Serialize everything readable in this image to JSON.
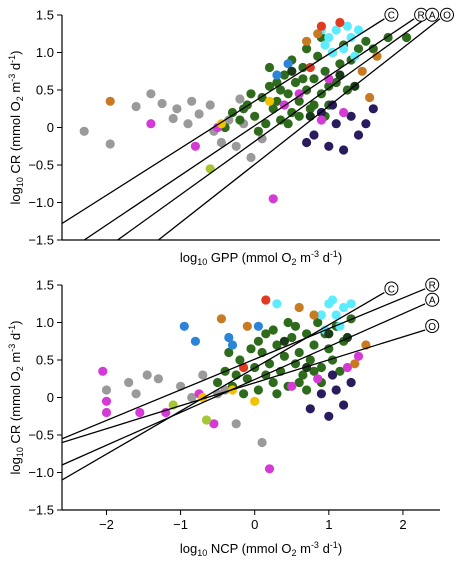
{
  "chart_data": [
    {
      "type": "scatter",
      "ylabel": "log10 CR (mmol O2 m-3 d-1)",
      "xlabel": "log10 GPP (mmol O2 m-3 d-1)",
      "xlim": [
        -2.6,
        2.5
      ],
      "ylim": [
        -1.5,
        1.5
      ],
      "y_ticks": [
        -1.5,
        -1.0,
        -0.5,
        0,
        0.5,
        1.0,
        1.5
      ],
      "y_tick_labels": [
        "−1.5",
        "−1.0",
        "−0.5",
        "0",
        "0.5",
        "1.0",
        "1.5"
      ],
      "x_tick_labels_shown": false,
      "regression_lines": [
        {
          "label": "C",
          "x": [
            -2.6,
            1.75
          ],
          "y": [
            -1.28,
            1.45
          ]
        },
        {
          "label": "R",
          "x": [
            -2.3,
            2.15
          ],
          "y": [
            -1.5,
            1.45
          ]
        },
        {
          "label": "A",
          "x": [
            -1.85,
            2.3
          ],
          "y": [
            -1.5,
            1.45
          ]
        },
        {
          "label": "O",
          "x": [
            -1.3,
            2.5
          ],
          "y": [
            -1.5,
            1.45
          ]
        }
      ],
      "point_groups": [
        {
          "color": "#9a9a9a",
          "points": [
            [
              -2.3,
              -0.05
            ],
            [
              -1.95,
              -0.22
            ],
            [
              -1.6,
              0.28
            ],
            [
              -1.4,
              0.45
            ],
            [
              -1.25,
              0.32
            ],
            [
              -1.1,
              0.12
            ],
            [
              -0.9,
              0.05
            ],
            [
              -0.75,
              0.18
            ],
            [
              -0.6,
              0.3
            ],
            [
              -0.45,
              -0.2
            ],
            [
              -0.35,
              0.1
            ],
            [
              -0.2,
              0.38
            ],
            [
              -0.05,
              -0.4
            ],
            [
              -0.55,
              -0.05
            ],
            [
              -0.15,
              0.05
            ],
            [
              0.1,
              -0.15
            ],
            [
              -0.85,
              0.35
            ],
            [
              -1.05,
              0.25
            ],
            [
              -0.25,
              -0.25
            ]
          ]
        },
        {
          "color": "#2f6b1c",
          "points": [
            [
              -0.4,
              0.0
            ],
            [
              -0.3,
              0.2
            ],
            [
              -0.2,
              0.1
            ],
            [
              -0.1,
              0.3
            ],
            [
              0.0,
              0.15
            ],
            [
              0.1,
              0.4
            ],
            [
              0.15,
              0.05
            ],
            [
              0.2,
              0.55
            ],
            [
              0.25,
              0.25
            ],
            [
              0.3,
              0.35
            ],
            [
              0.35,
              0.1
            ],
            [
              0.4,
              0.7
            ],
            [
              0.45,
              0.45
            ],
            [
              0.5,
              0.2
            ],
            [
              0.55,
              0.6
            ],
            [
              0.6,
              0.35
            ],
            [
              0.65,
              0.8
            ],
            [
              0.7,
              0.5
            ],
            [
              0.75,
              0.25
            ],
            [
              0.8,
              0.65
            ],
            [
              0.85,
              0.95
            ],
            [
              0.9,
              0.45
            ],
            [
              0.95,
              0.75
            ],
            [
              1.0,
              0.3
            ],
            [
              1.05,
              1.0
            ],
            [
              1.1,
              0.6
            ],
            [
              1.15,
              0.85
            ],
            [
              1.2,
              1.1
            ],
            [
              1.3,
              0.9
            ],
            [
              1.4,
              1.05
            ],
            [
              1.5,
              1.15
            ],
            [
              1.6,
              1.05
            ],
            [
              1.8,
              1.2
            ],
            [
              2.05,
              1.2
            ],
            [
              0.05,
              -0.05
            ],
            [
              -0.05,
              0.45
            ],
            [
              0.3,
              0.6
            ],
            [
              0.5,
              0.9
            ],
            [
              0.7,
              1.05
            ],
            [
              0.9,
              1.2
            ],
            [
              0.2,
              0.8
            ],
            [
              0.45,
              0.05
            ],
            [
              0.6,
              0.15
            ],
            [
              0.8,
              0.3
            ],
            [
              1.0,
              0.55
            ],
            [
              -0.15,
              0.25
            ],
            [
              0.35,
              0.5
            ],
            [
              0.65,
              0.65
            ],
            [
              0.95,
              0.15
            ],
            [
              1.25,
              0.5
            ]
          ]
        },
        {
          "color": "#5cecff",
          "points": [
            [
              0.9,
              1.3
            ],
            [
              1.0,
              1.2
            ],
            [
              1.1,
              1.3
            ],
            [
              1.2,
              1.05
            ],
            [
              1.3,
              1.2
            ],
            [
              1.4,
              1.3
            ],
            [
              1.05,
              1.0
            ],
            [
              0.95,
              1.1
            ],
            [
              1.25,
              1.35
            ],
            [
              1.35,
              0.95
            ]
          ]
        },
        {
          "color": "#2a1a5e",
          "points": [
            [
              0.8,
              -0.1
            ],
            [
              0.9,
              0.2
            ],
            [
              1.0,
              -0.25
            ],
            [
              1.1,
              0.05
            ],
            [
              1.2,
              -0.3
            ],
            [
              1.3,
              0.15
            ],
            [
              1.4,
              -0.1
            ],
            [
              1.5,
              0.05
            ],
            [
              1.6,
              0.25
            ],
            [
              1.05,
              0.3
            ],
            [
              0.7,
              -0.2
            ]
          ]
        },
        {
          "color": "#d63ad6",
          "points": [
            [
              -1.4,
              0.05
            ],
            [
              -0.8,
              -0.25
            ],
            [
              -0.5,
              0.0
            ],
            [
              0.25,
              -0.95
            ],
            [
              0.9,
              0.1
            ],
            [
              1.2,
              0.2
            ],
            [
              1.0,
              0.65
            ],
            [
              0.6,
              0.45
            ],
            [
              0.4,
              0.3
            ]
          ]
        },
        {
          "color": "#c87a22",
          "points": [
            [
              -1.95,
              0.35
            ],
            [
              0.7,
              1.15
            ],
            [
              0.85,
              1.25
            ],
            [
              1.45,
              0.75
            ],
            [
              1.55,
              0.4
            ],
            [
              1.65,
              0.95
            ]
          ]
        },
        {
          "color": "#e23a1f",
          "points": [
            [
              0.9,
              1.35
            ],
            [
              1.15,
              1.4
            ],
            [
              0.75,
              0.8
            ]
          ]
        },
        {
          "color": "#2c84d9",
          "points": [
            [
              0.45,
              0.85
            ],
            [
              0.3,
              0.7
            ]
          ]
        },
        {
          "color": "#f2c200",
          "points": [
            [
              -0.45,
              0.05
            ],
            [
              0.2,
              0.35
            ]
          ]
        },
        {
          "color": "#a6c636",
          "points": [
            [
              -0.6,
              -0.55
            ]
          ]
        },
        {
          "color": "#1a3a1a",
          "points": [
            [
              0.5,
              0.75
            ],
            [
              0.75,
              0.15
            ],
            [
              1.15,
              0.7
            ],
            [
              1.35,
              0.55
            ]
          ]
        }
      ],
      "line_color": "#000000"
    },
    {
      "type": "scatter",
      "ylabel": "log10 CR (mmol O2 m-3 d-1)",
      "xlabel": "log10 NCP (mmol O2 m-3 d-1)",
      "xlim": [
        -2.6,
        2.5
      ],
      "ylim": [
        -1.5,
        1.5
      ],
      "y_ticks": [
        -1.5,
        -1.0,
        -0.5,
        0,
        0.5,
        1.0,
        1.5
      ],
      "y_tick_labels": [
        "−1.5",
        "−1.0",
        "−0.5",
        "0",
        "0.5",
        "1.0",
        "1.5"
      ],
      "x_ticks": [
        -2,
        -1,
        0,
        1,
        2
      ],
      "x_tick_labels": [
        "−2",
        "−1",
        "0",
        "1",
        "2"
      ],
      "regression_lines": [
        {
          "label": "C",
          "x": [
            -2.6,
            1.75
          ],
          "y": [
            -1.1,
            1.4
          ]
        },
        {
          "label": "R",
          "x": [
            -2.6,
            2.3
          ],
          "y": [
            -0.55,
            1.45
          ]
        },
        {
          "label": "A",
          "x": [
            -2.6,
            2.3
          ],
          "y": [
            -0.9,
            1.25
          ]
        },
        {
          "label": "O",
          "x": [
            -2.6,
            2.3
          ],
          "y": [
            -0.6,
            0.9
          ]
        }
      ],
      "point_groups": [
        {
          "color": "#9a9a9a",
          "points": [
            [
              -2.0,
              0.1
            ],
            [
              -1.7,
              0.2
            ],
            [
              -1.6,
              0.05
            ],
            [
              -1.3,
              0.25
            ],
            [
              -1.0,
              0.15
            ],
            [
              -0.7,
              0.3
            ],
            [
              -0.4,
              0.1
            ],
            [
              -0.25,
              -0.35
            ],
            [
              0.1,
              -0.6
            ],
            [
              -0.5,
              0.05
            ],
            [
              -0.85,
              0.0
            ],
            [
              -1.45,
              0.3
            ]
          ]
        },
        {
          "color": "#2f6b1c",
          "points": [
            [
              -0.5,
              0.2
            ],
            [
              -0.4,
              0.35
            ],
            [
              -0.3,
              0.15
            ],
            [
              -0.2,
              0.5
            ],
            [
              -0.1,
              0.25
            ],
            [
              0.0,
              0.4
            ],
            [
              0.05,
              0.1
            ],
            [
              0.1,
              0.6
            ],
            [
              0.15,
              0.3
            ],
            [
              0.2,
              0.45
            ],
            [
              0.25,
              0.2
            ],
            [
              0.3,
              0.7
            ],
            [
              0.35,
              0.35
            ],
            [
              0.4,
              0.55
            ],
            [
              0.45,
              0.15
            ],
            [
              0.5,
              0.8
            ],
            [
              0.55,
              0.45
            ],
            [
              0.6,
              0.6
            ],
            [
              0.65,
              0.3
            ],
            [
              0.7,
              0.85
            ],
            [
              0.75,
              0.5
            ],
            [
              0.8,
              0.7
            ],
            [
              0.85,
              1.0
            ],
            [
              0.9,
              0.4
            ],
            [
              0.95,
              0.85
            ],
            [
              1.0,
              0.65
            ],
            [
              1.1,
              0.95
            ],
            [
              1.2,
              0.75
            ],
            [
              1.3,
              1.05
            ],
            [
              -0.15,
              0.05
            ],
            [
              0.05,
              0.75
            ],
            [
              0.25,
              0.9
            ],
            [
              0.45,
              1.0
            ],
            [
              0.6,
              0.2
            ],
            [
              0.8,
              0.35
            ],
            [
              1.05,
              0.5
            ],
            [
              -0.35,
              0.6
            ],
            [
              -0.05,
              0.65
            ],
            [
              0.3,
              0.05
            ],
            [
              0.15,
              0.85
            ],
            [
              0.55,
              0.95
            ],
            [
              0.7,
              0.1
            ],
            [
              0.9,
              0.2
            ],
            [
              1.15,
              0.35
            ],
            [
              -0.25,
              0.3
            ]
          ]
        },
        {
          "color": "#5cecff",
          "points": [
            [
              0.9,
              1.1
            ],
            [
              1.0,
              1.25
            ],
            [
              1.1,
              1.1
            ],
            [
              1.2,
              1.2
            ],
            [
              1.3,
              1.25
            ],
            [
              0.95,
              0.9
            ],
            [
              1.15,
              0.95
            ],
            [
              0.3,
              1.25
            ],
            [
              1.05,
              1.3
            ]
          ]
        },
        {
          "color": "#2a1a5e",
          "points": [
            [
              0.75,
              -0.15
            ],
            [
              0.9,
              0.05
            ],
            [
              1.0,
              -0.25
            ],
            [
              1.1,
              0.1
            ],
            [
              1.2,
              -0.1
            ],
            [
              1.3,
              0.2
            ],
            [
              1.05,
              0.3
            ]
          ]
        },
        {
          "color": "#d63ad6",
          "points": [
            [
              -2.05,
              0.35
            ],
            [
              -2.0,
              -0.05
            ],
            [
              -2.0,
              -0.2
            ],
            [
              -1.55,
              -0.2
            ],
            [
              -1.2,
              -0.2
            ],
            [
              -0.55,
              -0.35
            ],
            [
              0.2,
              -0.95
            ],
            [
              0.5,
              0.15
            ],
            [
              0.85,
              0.25
            ],
            [
              1.25,
              0.4
            ],
            [
              1.4,
              0.55
            ],
            [
              -0.75,
              0.05
            ]
          ]
        },
        {
          "color": "#c87a22",
          "points": [
            [
              -0.45,
              1.05
            ],
            [
              -0.1,
              0.95
            ],
            [
              0.6,
              1.2
            ],
            [
              1.35,
              0.45
            ],
            [
              1.5,
              0.7
            ],
            [
              0.8,
              1.1
            ]
          ]
        },
        {
          "color": "#e23a1f",
          "points": [
            [
              0.15,
              1.3
            ],
            [
              -0.15,
              0.4
            ]
          ]
        },
        {
          "color": "#2c84d9",
          "points": [
            [
              -0.95,
              0.95
            ],
            [
              -0.8,
              0.75
            ],
            [
              -0.35,
              0.8
            ],
            [
              -0.3,
              0.7
            ],
            [
              0.05,
              0.95
            ]
          ]
        },
        {
          "color": "#f2c200",
          "points": [
            [
              -0.7,
              0.0
            ],
            [
              -0.3,
              0.1
            ],
            [
              0.0,
              -0.05
            ]
          ]
        },
        {
          "color": "#a6c636",
          "points": [
            [
              -1.1,
              -0.1
            ],
            [
              -0.65,
              -0.3
            ]
          ]
        },
        {
          "color": "#1a3a1a",
          "points": [
            [
              0.4,
              0.75
            ],
            [
              0.7,
              0.4
            ],
            [
              1.0,
              0.85
            ],
            [
              1.25,
              0.8
            ]
          ]
        }
      ],
      "line_color": "#000000"
    }
  ]
}
